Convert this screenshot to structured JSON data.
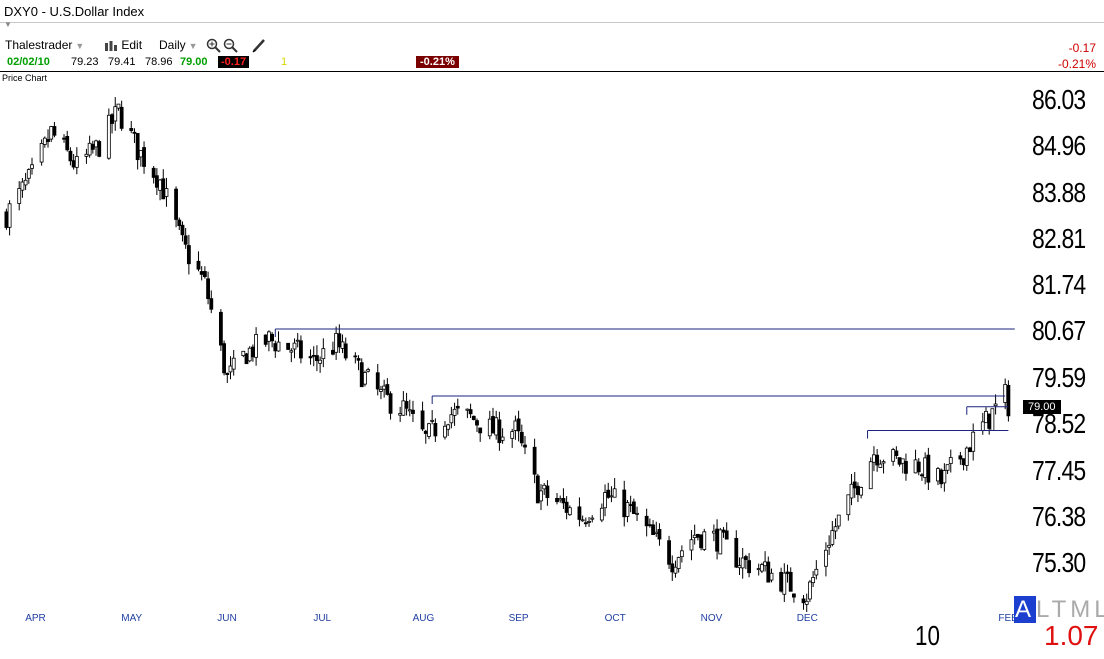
{
  "window": {
    "title": "DXY0 - U.S.Dollar Index"
  },
  "toolbar": {
    "user": "Thalestrader",
    "edit": "Edit",
    "interval": "Daily"
  },
  "quote": {
    "date": "02/02/10",
    "open": "79.23",
    "high": "79.41",
    "low": "78.96",
    "close": "79.00",
    "change": "-0.17",
    "volume": "1",
    "change_pct": "-0.21%"
  },
  "header_right": {
    "change": "-0.17",
    "change_pct": "-0.21%"
  },
  "pane": {
    "label": "Price Chart"
  },
  "colors": {
    "candle": "#000000",
    "trendline": "#1a237e",
    "month_label": "#1f3ea3",
    "negative": "#d00000"
  },
  "chart_data": {
    "type": "candlestick",
    "symbol": "DXY0",
    "y_ticks": [
      "86.03",
      "84.96",
      "83.88",
      "82.81",
      "81.74",
      "80.67",
      "79.59",
      "78.52",
      "77.45",
      "76.38",
      "75.30"
    ],
    "ylim": [
      74.2,
      86.7
    ],
    "x_months": [
      "APR",
      "MAY",
      "JUN",
      "JUL",
      "AUG",
      "SEP",
      "OCT",
      "NOV",
      "DEC",
      "FEB"
    ],
    "year_label": "10",
    "last_price": "79.00",
    "series_close_path": [
      [
        "2009-03-26",
        83.4
      ],
      [
        "2009-04-03",
        84.3
      ],
      [
        "2009-04-09",
        85.3
      ],
      [
        "2009-04-17",
        84.5
      ],
      [
        "2009-04-24",
        85.0
      ],
      [
        "2009-04-30",
        85.8
      ],
      [
        "2009-05-06",
        84.9
      ],
      [
        "2009-05-13",
        84.2
      ],
      [
        "2009-05-20",
        82.7
      ],
      [
        "2009-05-27",
        81.8
      ],
      [
        "2009-06-03",
        79.6
      ],
      [
        "2009-06-09",
        80.2
      ],
      [
        "2009-06-16",
        80.5
      ],
      [
        "2009-06-23",
        80.3
      ],
      [
        "2009-06-30",
        80.0
      ],
      [
        "2009-07-07",
        80.4
      ],
      [
        "2009-07-14",
        79.8
      ],
      [
        "2009-07-21",
        79.2
      ],
      [
        "2009-07-28",
        78.9
      ],
      [
        "2009-08-04",
        78.2
      ],
      [
        "2009-08-11",
        78.8
      ],
      [
        "2009-08-18",
        78.7
      ],
      [
        "2009-08-25",
        78.4
      ],
      [
        "2009-09-01",
        78.4
      ],
      [
        "2009-09-08",
        77.0
      ],
      [
        "2009-09-15",
        76.7
      ],
      [
        "2009-09-22",
        76.4
      ],
      [
        "2009-09-29",
        76.9
      ],
      [
        "2009-10-06",
        76.6
      ],
      [
        "2009-10-13",
        76.0
      ],
      [
        "2009-10-20",
        75.4
      ],
      [
        "2009-10-27",
        76.0
      ],
      [
        "2009-11-03",
        75.9
      ],
      [
        "2009-11-10",
        75.4
      ],
      [
        "2009-11-17",
        75.2
      ],
      [
        "2009-11-24",
        74.9
      ],
      [
        "2009-12-01",
        74.6
      ],
      [
        "2009-12-08",
        75.9
      ],
      [
        "2009-12-15",
        76.9
      ],
      [
        "2009-12-22",
        77.9
      ],
      [
        "2009-12-29",
        77.7
      ],
      [
        "2010-01-05",
        77.6
      ],
      [
        "2010-01-12",
        77.2
      ],
      [
        "2010-01-19",
        77.9
      ],
      [
        "2010-01-26",
        78.6
      ],
      [
        "2010-02-01",
        79.2
      ],
      [
        "2010-02-02",
        79.0
      ]
    ],
    "horizontal_lines": [
      {
        "price": 80.75,
        "from": "2009-06-18",
        "to": "2010-02-04"
      },
      {
        "price": 79.2,
        "from": "2009-08-06",
        "to": "2010-02-01"
      },
      {
        "price": 78.95,
        "from": "2010-01-20",
        "to": "2010-02-02"
      },
      {
        "price": 78.4,
        "from": "2009-12-20",
        "to": "2010-02-02"
      }
    ]
  },
  "badges": {
    "tml_a": "A",
    "tml_rest": "LTML",
    "red_value": "1.07"
  }
}
